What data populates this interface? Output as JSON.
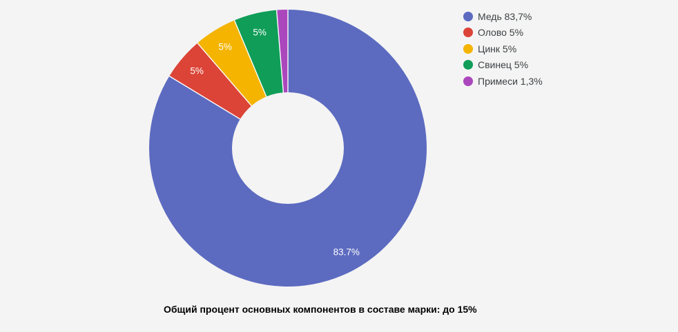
{
  "page": {
    "background": "#f4f4f4"
  },
  "chart_data": {
    "type": "pie",
    "subtype": "donut",
    "direction": "clockwise",
    "start_angle_deg": 0,
    "hole_radius_ratio": 0.4,
    "legend_position": "right",
    "grid": false,
    "total": 100,
    "caption": "Общий процент основных компонентов в составе марки: до 15%",
    "slice_label_color": "#ffffff",
    "legend_text_color": "#3c4043",
    "slices": [
      {
        "id": "copper",
        "name": "Медь",
        "value": 83.7,
        "color": "#5c6bc0",
        "slice_label": "83.7%",
        "legend_label": "Медь 83,7%"
      },
      {
        "id": "tin",
        "name": "Олово",
        "value": 5,
        "color": "#db4437",
        "slice_label": "5%",
        "legend_label": "Олово 5%"
      },
      {
        "id": "zinc",
        "name": "Цинк",
        "value": 5,
        "color": "#f4b400",
        "slice_label": "5%",
        "legend_label": "Цинк 5%"
      },
      {
        "id": "lead",
        "name": "Свинец",
        "value": 5,
        "color": "#0f9d58",
        "slice_label": "5%",
        "legend_label": "Свинец 5%"
      },
      {
        "id": "impurities",
        "name": "Примеси",
        "value": 1.3,
        "color": "#ab47bc",
        "slice_label": "",
        "legend_label": "Примеси 1,3%"
      }
    ]
  }
}
